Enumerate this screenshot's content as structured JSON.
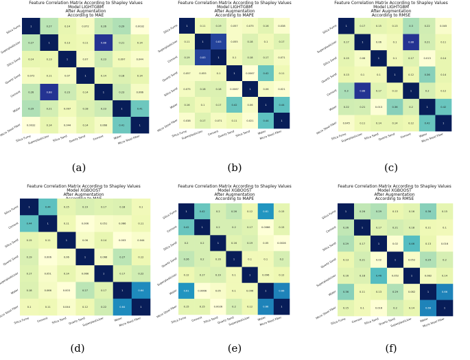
{
  "figure": {
    "panel_labels": [
      "(a)",
      "(b)",
      "(c)",
      "(d)",
      "(e)",
      "(f)"
    ]
  },
  "colorscale": [
    "#ffffd9",
    "#edf8b1",
    "#c7e9b4",
    "#7fcdbb",
    "#41b6c4",
    "#1d91c0",
    "#225ea8",
    "#253494",
    "#081d58"
  ],
  "chart_data": [
    {
      "type": "heatmap",
      "title": [
        "Feature Correlation Matrix According to Shapley Values",
        "Model LIGHTGBM",
        "After Augmentation",
        "According to MAE"
      ],
      "labels": [
        "Silica Fume",
        "Superplasticizer",
        "Silica Sand",
        "Quartz Sand",
        "Cement",
        "Water",
        "Micro Steel Fiber"
      ],
      "values": [
        [
          1,
          0.27,
          0.14,
          0.072,
          0.26,
          0.29,
          0.0032
        ],
        [
          0.27,
          1,
          0.13,
          0.11,
          0.88,
          0.21,
          0.14
        ],
        [
          0.14,
          0.13,
          1,
          0.07,
          0.23,
          0.097,
          0.044
        ],
        [
          0.072,
          0.11,
          0.07,
          1,
          0.14,
          0.18,
          0.14
        ],
        [
          0.26,
          0.88,
          0.23,
          0.14,
          1,
          0.23,
          0.066
        ],
        [
          0.29,
          0.21,
          0.097,
          0.18,
          0.23,
          1,
          0.41
        ],
        [
          0.0032,
          0.14,
          0.044,
          0.14,
          0.066,
          0.41,
          1
        ]
      ]
    },
    {
      "type": "heatmap",
      "title": [
        "Feature Correlation Matrix According to Shapley Values",
        "Model LIGHTGBM",
        "After Augmentation",
        "According to MAPE"
      ],
      "labels": [
        "Silica Fume",
        "Superplasticizer",
        "Cement",
        "Quartz Sand",
        "Silica Sand",
        "Water",
        "Micro Steel Fiber"
      ],
      "values": [
        [
          1,
          0.11,
          0.19,
          0.057,
          0.075,
          0.16,
          0.038
        ],
        [
          0.11,
          1,
          0.83,
          0.055,
          0.18,
          0.1,
          0.17
        ],
        [
          0.19,
          0.83,
          1,
          0.1,
          0.18,
          0.17,
          0.071
        ],
        [
          0.057,
          0.055,
          0.1,
          1,
          0.0067,
          0.42,
          0.11
        ],
        [
          0.075,
          0.18,
          0.18,
          0.0067,
          1,
          0.06,
          0.021
        ],
        [
          0.16,
          0.1,
          0.17,
          0.42,
          0.06,
          1,
          0.44
        ],
        [
          0.038,
          0.17,
          0.071,
          0.11,
          0.021,
          0.44,
          1
        ]
      ]
    },
    {
      "type": "heatmap",
      "title": [
        "Feature Correlation Matrix According to Shapley Values",
        "Model LIGHTGBM",
        "After Augmentation",
        "According to RMSE"
      ],
      "labels": [
        "Silica Fume",
        "Superplasticizer",
        "Silica Sand",
        "Quartz Sand",
        "Cement",
        "Water",
        "Micro Steel Fiber"
      ],
      "values": [
        [
          1,
          0.17,
          0.15,
          0.13,
          0.3,
          0.22,
          0.045
        ],
        [
          0.17,
          1,
          0.06,
          0.1,
          0.88,
          0.21,
          0.11
        ],
        [
          0.15,
          0.06,
          1,
          0.1,
          0.17,
          0.013,
          0.14
        ],
        [
          0.13,
          0.1,
          0.1,
          1,
          0.12,
          0.36,
          0.14
        ],
        [
          0.3,
          0.88,
          0.17,
          0.12,
          1,
          0.2,
          0.12
        ],
        [
          0.22,
          0.21,
          0.013,
          0.36,
          0.2,
          1,
          0.42
        ],
        [
          0.045,
          0.11,
          0.14,
          0.14,
          0.12,
          0.42,
          1
        ]
      ]
    },
    {
      "type": "heatmap",
      "title": [
        "Feature Correlation Matrix According to Shapley Values",
        "Model XGBOOST",
        "After Augmentation",
        "According to MAE"
      ],
      "labels": [
        "Silica Fume",
        "Cement",
        "Silica Sand",
        "Quartz Sand",
        "Superplasticizer",
        "Water",
        "Micro Steel Fiber"
      ],
      "values": [
        [
          1,
          0.44,
          0.15,
          0.19,
          0.17,
          0.18,
          0.1
        ],
        [
          0.44,
          1,
          0.11,
          0.006,
          0.051,
          0.066,
          0.11
        ],
        [
          0.15,
          0.11,
          1,
          0.06,
          0.14,
          0.003,
          0.044
        ],
        [
          0.19,
          0.006,
          0.06,
          1,
          0.066,
          0.27,
          0.12
        ],
        [
          0.17,
          0.051,
          0.14,
          0.066,
          1,
          0.17,
          0.22
        ],
        [
          0.18,
          0.066,
          0.003,
          0.27,
          0.17,
          1,
          0.64
        ],
        [
          0.1,
          0.11,
          0.044,
          0.12,
          0.22,
          0.64,
          1
        ]
      ]
    },
    {
      "type": "heatmap",
      "title": [
        "Feature Correlation Matrix According to Shapley Values",
        "Model XGBOOST",
        "After Augmentation",
        "According to MAPE"
      ],
      "labels": [
        "Silica Fume",
        "Cement",
        "Silica Sand",
        "Quartz Sand",
        "Superplasticizer",
        "Water",
        "Micro Steel Fiber"
      ],
      "values": [
        [
          1,
          0.42,
          0.2,
          0.26,
          0.12,
          0.61,
          0.15
        ],
        [
          0.42,
          1,
          0.2,
          0.2,
          0.17,
          0.0066,
          0.15
        ],
        [
          0.2,
          0.2,
          1,
          0.16,
          0.19,
          0.05,
          0.0026
        ],
        [
          0.26,
          0.2,
          0.16,
          1,
          0.1,
          0.1,
          0.2
        ],
        [
          0.12,
          0.17,
          0.19,
          0.1,
          1,
          0.096,
          0.12
        ],
        [
          0.61,
          0.0066,
          0.05,
          0.1,
          0.096,
          1,
          0.66
        ],
        [
          0.15,
          0.15,
          0.0026,
          0.2,
          0.12,
          0.66,
          1
        ]
      ]
    },
    {
      "type": "heatmap",
      "title": [
        "Feature Correlation Matrix According to Shapley Values",
        "Model XGBOOST",
        "After Augmentation",
        "According to RMSE"
      ],
      "labels": [
        "Silica Fume",
        "Cement",
        "Silica Sand",
        "Quartz Sand",
        "Superplasticizer",
        "Water",
        "Micro Steel Fiber"
      ],
      "values": [
        [
          1,
          0.26,
          0.29,
          0.13,
          0.16,
          0.36,
          0.15
        ],
        [
          0.26,
          1,
          0.17,
          0.21,
          0.18,
          0.11,
          0.1
        ],
        [
          0.29,
          0.17,
          1,
          0.02,
          0.46,
          0.13,
          0.016
        ],
        [
          0.13,
          0.21,
          0.02,
          1,
          0.052,
          0.29,
          0.2
        ],
        [
          0.16,
          0.18,
          0.46,
          0.052,
          1,
          0.082,
          0.14
        ],
        [
          0.36,
          0.11,
          0.13,
          0.29,
          0.082,
          1,
          0.66
        ],
        [
          0.15,
          0.1,
          0.016,
          0.2,
          0.14,
          0.66,
          1
        ]
      ]
    }
  ]
}
